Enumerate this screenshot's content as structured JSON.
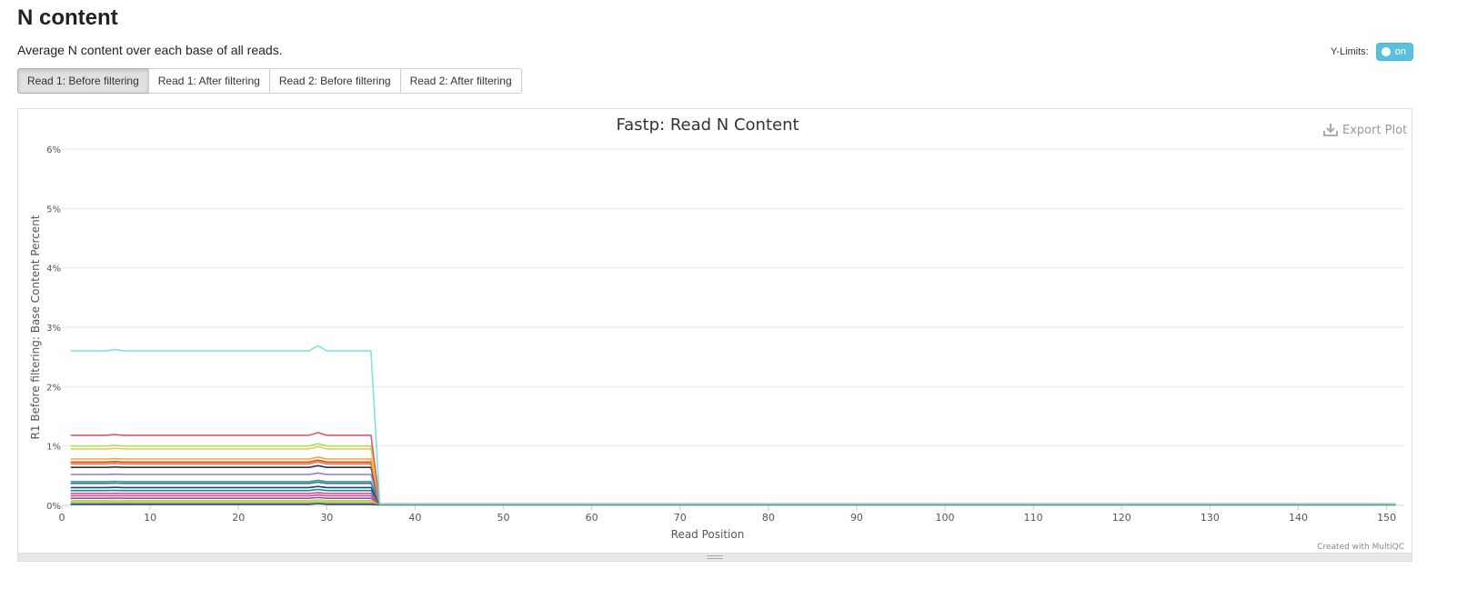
{
  "header": {
    "title": "N content",
    "description": "Average N content over each base of all reads."
  },
  "ylimits": {
    "label": "Y-Limits:",
    "toggle_label": "on"
  },
  "tabs": [
    {
      "label": "Read 1: Before filtering",
      "active": true
    },
    {
      "label": "Read 1: After filtering",
      "active": false
    },
    {
      "label": "Read 2: Before filtering",
      "active": false
    },
    {
      "label": "Read 2: After filtering",
      "active": false
    }
  ],
  "plot": {
    "export_label": "Export Plot",
    "credit": "Created with MultiQC"
  },
  "chart_data": {
    "type": "line",
    "title": "Fastp: Read N Content",
    "xlabel": "Read Position",
    "ylabel": "R1 Before filtering: Base Content Percent",
    "xlim": [
      0,
      152
    ],
    "ylim": [
      0,
      6
    ],
    "xticks": [
      0,
      10,
      20,
      30,
      40,
      50,
      60,
      70,
      80,
      90,
      100,
      110,
      120,
      130,
      140,
      150
    ],
    "yticks": [
      "0%",
      "1%",
      "2%",
      "3%",
      "4%",
      "5%",
      "6%"
    ],
    "grid": true,
    "legend": "none",
    "step_position": 35,
    "end_position": 151,
    "series": [
      {
        "level": 2.6,
        "tail": 0.02,
        "color": "#7fe5d8"
      },
      {
        "level": 1.18,
        "tail": 0.02,
        "color": "#f0506e"
      },
      {
        "level": 1.0,
        "tail": 0.02,
        "color": "#a6e05a"
      },
      {
        "level": 0.95,
        "tail": 0.02,
        "color": "#f2c94c"
      },
      {
        "level": 0.78,
        "tail": 0.02,
        "color": "#f5a623"
      },
      {
        "level": 0.73,
        "tail": 0.02,
        "color": "#e8491d"
      },
      {
        "level": 0.7,
        "tail": 0.02,
        "color": "#ff7043"
      },
      {
        "level": 0.64,
        "tail": 0.02,
        "color": "#1a3d4d"
      },
      {
        "level": 0.52,
        "tail": 0.02,
        "color": "#8c7ae6"
      },
      {
        "level": 0.4,
        "tail": 0.02,
        "color": "#2e9e8f"
      },
      {
        "level": 0.37,
        "tail": 0.02,
        "color": "#4a6fa5"
      },
      {
        "level": 0.3,
        "tail": 0.02,
        "color": "#0b4f6c"
      },
      {
        "level": 0.25,
        "tail": 0.02,
        "color": "#1e7fb8"
      },
      {
        "level": 0.2,
        "tail": 0.02,
        "color": "#d94f9e"
      },
      {
        "level": 0.16,
        "tail": 0.02,
        "color": "#e84a5f"
      },
      {
        "level": 0.12,
        "tail": 0.02,
        "color": "#6c5ce7"
      },
      {
        "level": 0.08,
        "tail": 0.02,
        "color": "#f1c40f"
      },
      {
        "level": 0.05,
        "tail": 0.02,
        "color": "#7fc97f"
      },
      {
        "level": 0.02,
        "tail": 0.01,
        "color": "#2c3e50"
      }
    ]
  }
}
